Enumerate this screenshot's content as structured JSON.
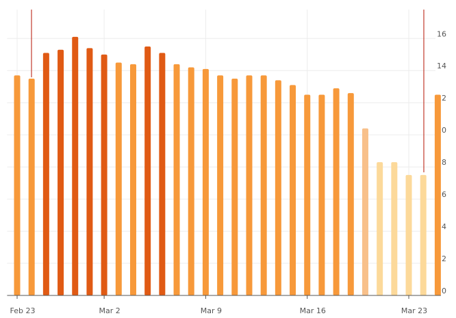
{
  "chart_data": {
    "type": "bar",
    "categories": [
      "Feb 23",
      null,
      null,
      null,
      null,
      null,
      "Mar 2",
      null,
      null,
      null,
      null,
      null,
      null,
      "Mar 9",
      null,
      null,
      null,
      null,
      null,
      null,
      "Mar 16",
      null,
      null,
      null,
      null,
      null,
      null,
      "Mar 23",
      null,
      null
    ],
    "values": [
      13.7,
      13.5,
      15.1,
      15.3,
      16.1,
      15.4,
      15.0,
      14.5,
      14.4,
      15.5,
      15.1,
      14.4,
      14.2,
      14.1,
      13.7,
      13.5,
      13.7,
      13.7,
      13.4,
      13.1,
      12.5,
      12.5,
      12.9,
      12.6,
      10.4,
      8.3,
      8.3,
      7.5,
      7.5,
      12.5
    ],
    "colors": [
      "#f7993a",
      "#f7993a",
      "#e05a14",
      "#e05a14",
      "#e05a14",
      "#e05a14",
      "#e05a14",
      "#f7993a",
      "#f7993a",
      "#e05a14",
      "#e05a14",
      "#f7993a",
      "#f7993a",
      "#f7993a",
      "#f7993a",
      "#f7993a",
      "#f7993a",
      "#f7993a",
      "#f7993a",
      "#f7993a",
      "#f7993a",
      "#f7993a",
      "#f7993a",
      "#f7993a",
      "#f8c08a",
      "#fcd99a",
      "#fcd99a",
      "#fcd99a",
      "#fcd99a",
      "#f7993a"
    ],
    "ylim": [
      0,
      17.8
    ],
    "yticks": [
      0,
      2,
      4,
      6,
      8,
      10,
      12,
      14,
      16
    ],
    "grid": true
  }
}
